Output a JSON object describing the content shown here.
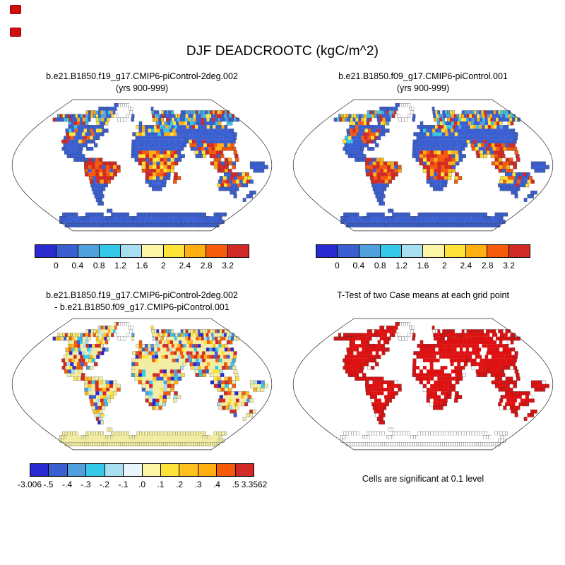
{
  "page": {
    "title": "DJF DEADCROOTC (kgC/m^2)",
    "background": "#ffffff"
  },
  "decorations": {
    "corner_mark_color": "#cc1111",
    "corner_mark_count": 2
  },
  "panels": [
    {
      "id": "case1",
      "title_line1": "b.e21.B1850.f19_g17.CMIP6-piControl-2deg.002",
      "title_line2": "(yrs 900-999)"
    },
    {
      "id": "case2",
      "title_line1": "b.e21.B1850.f09_g17.CMIP6-piControl.001",
      "title_line2": "(yrs 900-999)"
    },
    {
      "id": "difference",
      "title_line1": "b.e21.B1850.f19_g17.CMIP6-piControl-2deg.002",
      "title_line2": "- b.e21.B1850.f09_g17.CMIP6-piControl.001"
    },
    {
      "id": "ttest",
      "title_line1": "T-Test of two Case means at each grid point",
      "title_line2": "",
      "caption": "Cells are significant at 0.1 level"
    }
  ],
  "chart_data": [
    {
      "type": "heatmap",
      "panel": "top-left",
      "variable": "DEADCROOTC",
      "season": "DJF",
      "units": "kgC/m^2",
      "title": "b.e21.B1850.f19_g17.CMIP6-piControl-2deg.002",
      "subtitle": "(yrs 900-999)",
      "projection": "robinson",
      "colorbar": {
        "colors": [
          "#2a2ad0",
          "#3a5fd0",
          "#4fa0dc",
          "#35c8e8",
          "#a8dff0",
          "#fdf5a6",
          "#ffe339",
          "#ffaf12",
          "#f55b0b",
          "#d22b27"
        ],
        "tick_labels": [
          "0",
          "0.4",
          "0.8",
          "1.2",
          "1.6",
          "2",
          "2.4",
          "2.8",
          "3.2"
        ],
        "tick_positions_pct": [
          10,
          20,
          30,
          40,
          50,
          60,
          70,
          80,
          90
        ]
      }
    },
    {
      "type": "heatmap",
      "panel": "top-right",
      "variable": "DEADCROOTC",
      "season": "DJF",
      "units": "kgC/m^2",
      "title": "b.e21.B1850.f09_g17.CMIP6-piControl.001",
      "subtitle": "(yrs 900-999)",
      "projection": "robinson",
      "colorbar": {
        "colors": [
          "#2a2ad0",
          "#3a5fd0",
          "#4fa0dc",
          "#35c8e8",
          "#a8dff0",
          "#fdf5a6",
          "#ffe339",
          "#ffaf12",
          "#f55b0b",
          "#d22b27"
        ],
        "tick_labels": [
          "0",
          "0.4",
          "0.8",
          "1.2",
          "1.6",
          "2",
          "2.4",
          "2.8",
          "3.2"
        ],
        "tick_positions_pct": [
          10,
          20,
          30,
          40,
          50,
          60,
          70,
          80,
          90
        ]
      }
    },
    {
      "type": "heatmap",
      "panel": "bottom-left",
      "title": "b.e21.B1850.f19_g17.CMIP6-piControl-2deg.002 - b.e21.B1850.f09_g17.CMIP6-piControl.001",
      "projection": "robinson",
      "min": -3.006,
      "max": 3.3562,
      "colorbar": {
        "colors": [
          "#2a2ad0",
          "#3a5fd0",
          "#4fa0dc",
          "#35c8e8",
          "#a8dff0",
          "#e8f6fb",
          "#fdf5a6",
          "#ffe339",
          "#ffc020",
          "#ffaf12",
          "#f55b0b",
          "#d22b27"
        ],
        "tick_labels": [
          "-3.006",
          "-.5",
          "-.4",
          "-.3",
          "-.2",
          "-.1",
          ".0",
          ".1",
          ".2",
          ".3",
          ".4",
          ".5",
          "3.3562"
        ],
        "tick_positions_pct": [
          0,
          8.33,
          16.67,
          25,
          33.33,
          41.67,
          50,
          58.33,
          66.67,
          75,
          83.33,
          91.67,
          100
        ]
      }
    },
    {
      "type": "map",
      "panel": "bottom-right",
      "title": "T-Test of two Case means at each grid point",
      "note": "Cells are significant at 0.1 level",
      "significant_color": "#dd1111",
      "projection": "robinson"
    }
  ],
  "map": {
    "mask": [
      "........................................................................",
      ".......................LLGGGGG..........................................",
      ".................LLLLLLLLGGGGGGG........L...............................",
      ".............LLLLLLLLLLLLGGGGGGG........LLL.LLLLL...LLLLLLLLLLLLLLLLLLLL",
      "...LLLLLLLLLLLLLLLLLLLLLL.GGGGG.L.......LLLLLLLLLLLLLLLLLLLLLLLLLLLLLLLL",
      "...LLLLLLLLLLLLLL..LLLLL...GGG..L.......LLLL.LLLLLLLLLLLLLLLLLLLLLLLLLLL",
      "..........LLLLLLL...LLLL...........L.....LLLLLLLLLLLLLLLLLLLLLLL..LL....",
      "...........LLLLLLLLLLLL...........LLLLLLLLLLLLLLLLLLLLLLLLLLLLLLL.......",
      "...........LLLLLLLLLLLLLL..........LLLLLLLLLLLLLLLLLLLLLLLLLLLLLLL.....",
      "............LLLLLLLLLLLL.........LLLLLLLLLLLLLLLLLLLLLLLLLLLLLLLLL......",
      "............LLLLLLLLLLL...........LLLLLLLLLLLLLLLLLLLLLLLLLLLLLLL.......",
      "............LLLLLLLLLL...........LLLLLLLLLLLLLLLLLLLLLLLLLLLLLLL........",
      ".............LLLLLLL..L..........LLLLLLLLLLLLLLLL.LLLLLLLLLLLLL.........",
      ".............LLLLLL.LL...........LLLLLLLLLLLLLLL..LLLLLLLLLLLLL.........",
      "..............LLLLL..............LLLLLLLLLLLLLL....LLLLLLLL...L.........",
      "...............LLLLL.............LLLLLLLLLLLLLLL...LLL.LLLL...L.........",
      ".................LLLLLLLL.........LLLLLLLLLLLLL.........LL.LL.L.........",
      "....................LLLLLLLLL......LLLLLLLLLLL.........LLLLLLL....LLLL..",
      "....................LLLLLLLLLL......LLLLLLLLL...........LLLL.L....LLLLL.",
      "....................LLLLLLLLLL......LLLLLLLLL............LLLL......LLL..",
      "....................LLLLLLLLL........LLLLLLL.L.............LLLLLLL......",
      ".....................LLLLLLL.........LLLLLLL.LL...........LLLLLLLLL.....",
      ".....................LLLLLL..........LLLLLL..L............LLLLLLLLLL....",
      ".....................LLLLL............LLLLL...............LLLLLLLLL.....",
      ".....................LLLL..............LLL.................LLLLLL.......",
      ".....................LLL.......................................LL....LL.",
      ".....................LLL.........................................L...LL.",
      ".....................LL..............................................L..",
      ".....................LL.................................................",
      "........................................................................",
      ".......................AA...............................................",
      ".....AAAAAA...AAAAAAA...AAAAAAA...AAAAAAAAAAAAAAAAAAAAAAAAAAA...AAAAA...",
      "..AAAAAAAAAAAAAAAAAAAAAAAAAAAAAAAAAAAAAAAAAAAAAAAAAAAAAAAAAAAAAAAAAAA.",
      "AAAAAAAAAAAAAAAAAAAAAAAAAAAAAAAAAAAAAAAAAAAAAAAAAAAAAAAAAAAAAAAAAAAAAAAA",
      "AAAAAAAAAAAAAAAAAAAAAAAAAAAAAAAAAAAAAAAAAAAAAAAAAAAAAAAAAAAAAAAAAAAAAAAA",
      "........................................................................"
    ]
  },
  "render": {
    "panels": [
      {
        "svg": "map0",
        "seed": 1,
        "base": "#3a5fd0",
        "greenland": "#ffffff",
        "antarctica": "#3a5fd0",
        "coast": true,
        "coastColor": "#3b3b46",
        "rules": [
          {
            "r": [
              16,
              22
            ],
            "c": [
              20,
              29
            ],
            "p": 0.9,
            "colors": [
              "#d22b27",
              "#d22b27",
              "#f55b0b",
              "#ffaf12"
            ],
            "s": 11
          },
          {
            "r": [
              14,
              21
            ],
            "c": [
              35,
              45
            ],
            "p": 0.85,
            "colors": [
              "#d22b27",
              "#f55b0b",
              "#d22b27",
              "#ffe339",
              "#ffaf12"
            ],
            "s": 12
          },
          {
            "r": [
              11,
              15
            ],
            "c": [
              49,
              54
            ],
            "p": 0.45,
            "colors": [
              "#f55b0b",
              "#d22b27",
              "#ffe339"
            ],
            "s": 13
          },
          {
            "r": [
              12,
              19
            ],
            "c": [
              54,
              62
            ],
            "p": 0.85,
            "colors": [
              "#d22b27",
              "#f55b0b",
              "#d22b27",
              "#ffaf12"
            ],
            "s": 14
          },
          {
            "r": [
              20,
              22
            ],
            "c": [
              44,
              46
            ],
            "p": 0.9,
            "colors": [
              "#d22b27",
              "#f55b0b"
            ],
            "s": 15
          },
          {
            "r": [
              8,
              11
            ],
            "c": [
              17,
              22
            ],
            "p": 0.55,
            "colors": [
              "#d22b27",
              "#f55b0b",
              "#ffe339"
            ],
            "s": 16
          },
          {
            "r": [
              6,
              11
            ],
            "c": [
              10,
              14
            ],
            "p": 0.5,
            "colors": [
              "#f55b0b",
              "#ffe339",
              "#35c8e8",
              "#d22b27"
            ],
            "s": 17
          },
          {
            "r": [
              3,
              6
            ],
            "c": [
              3,
              24
            ],
            "p": 0.6,
            "colors": [
              "#35c8e8",
              "#ffe339",
              "#ffaf12",
              "#4fa0dc",
              "#d22b27"
            ],
            "s": 18
          },
          {
            "r": [
              3,
              7
            ],
            "c": [
              40,
              71
            ],
            "p": 0.6,
            "colors": [
              "#35c8e8",
              "#ffe339",
              "#ffaf12",
              "#d22b27",
              "#4fa0dc"
            ],
            "s": 19
          },
          {
            "r": [
              7,
              9
            ],
            "c": [
              34,
              46
            ],
            "p": 0.45,
            "colors": [
              "#ffe339",
              "#35c8e8",
              "#ffaf12"
            ],
            "s": 20
          },
          {
            "r": [
              20,
              23
            ],
            "c": [
              58,
              67
            ],
            "p": 0.5,
            "colors": [
              "#f55b0b",
              "#d22b27",
              "#ffe339"
            ],
            "s": 21
          }
        ]
      },
      {
        "svg": "map1",
        "seed": 2,
        "base": "#3a5fd0",
        "greenland": "#ffffff",
        "antarctica": "#3a5fd0",
        "coast": true,
        "coastColor": "#3b3b46",
        "rules": [
          {
            "r": [
              16,
              22
            ],
            "c": [
              20,
              29
            ],
            "p": 0.9,
            "colors": [
              "#d22b27",
              "#d22b27",
              "#f55b0b",
              "#ffaf12"
            ],
            "s": 11
          },
          {
            "r": [
              14,
              21
            ],
            "c": [
              35,
              45
            ],
            "p": 0.85,
            "colors": [
              "#d22b27",
              "#f55b0b",
              "#d22b27",
              "#ffe339",
              "#ffaf12"
            ],
            "s": 12
          },
          {
            "r": [
              11,
              15
            ],
            "c": [
              49,
              54
            ],
            "p": 0.45,
            "colors": [
              "#f55b0b",
              "#d22b27",
              "#ffe339"
            ],
            "s": 13
          },
          {
            "r": [
              12,
              19
            ],
            "c": [
              54,
              62
            ],
            "p": 0.85,
            "colors": [
              "#d22b27",
              "#f55b0b",
              "#d22b27",
              "#ffaf12"
            ],
            "s": 14
          },
          {
            "r": [
              20,
              22
            ],
            "c": [
              44,
              46
            ],
            "p": 0.9,
            "colors": [
              "#d22b27",
              "#f55b0b"
            ],
            "s": 15
          },
          {
            "r": [
              8,
              11
            ],
            "c": [
              17,
              22
            ],
            "p": 0.55,
            "colors": [
              "#d22b27",
              "#f55b0b",
              "#ffe339"
            ],
            "s": 16
          },
          {
            "r": [
              6,
              11
            ],
            "c": [
              10,
              14
            ],
            "p": 0.5,
            "colors": [
              "#f55b0b",
              "#ffe339",
              "#35c8e8",
              "#d22b27"
            ],
            "s": 17
          },
          {
            "r": [
              3,
              6
            ],
            "c": [
              3,
              24
            ],
            "p": 0.6,
            "colors": [
              "#35c8e8",
              "#ffe339",
              "#ffaf12",
              "#4fa0dc",
              "#d22b27"
            ],
            "s": 18
          },
          {
            "r": [
              3,
              7
            ],
            "c": [
              40,
              71
            ],
            "p": 0.6,
            "colors": [
              "#35c8e8",
              "#ffe339",
              "#ffaf12",
              "#d22b27",
              "#4fa0dc"
            ],
            "s": 19
          },
          {
            "r": [
              7,
              9
            ],
            "c": [
              34,
              46
            ],
            "p": 0.45,
            "colors": [
              "#ffe339",
              "#35c8e8",
              "#ffaf12"
            ],
            "s": 20
          },
          {
            "r": [
              20,
              23
            ],
            "c": [
              58,
              67
            ],
            "p": 0.5,
            "colors": [
              "#f55b0b",
              "#d22b27",
              "#ffe339"
            ],
            "s": 21
          }
        ]
      },
      {
        "svg": "map2",
        "seed": 3,
        "base": "#f2eda2",
        "greenland": "#ffffff",
        "antarctica": "#f2eda2",
        "coast": true,
        "coastColor": "#555555",
        "rules": [
          {
            "r": [
              11,
              13
            ],
            "c": [
              33,
              46
            ],
            "p": 0.22,
            "stop": true,
            "colors": [
              "#f55b0b",
              "#35c8e8",
              "#ffe339",
              "#3a5fd0"
            ],
            "s": 31
          },
          {
            "r": [
              0,
              29
            ],
            "c": [
              0,
              71
            ],
            "p": 0.62,
            "colors": [
              "#d22b27",
              "#f55b0b",
              "#ffaf12",
              "#ffe339",
              "#2a2ad0",
              "#3a5fd0",
              "#35c8e8",
              "#a8dff0",
              "#4fa0dc",
              "#d22b27",
              "#f55b0b",
              "#ffc020"
            ],
            "s": 32
          }
        ]
      },
      {
        "svg": "map3",
        "seed": 4,
        "base": "#dd1111",
        "greenland": "#ffffff",
        "antarctica": "#ffffff",
        "coast": true,
        "coastColor": "#333333",
        "rules": [
          {
            "r": [
              11,
              13
            ],
            "c": [
              34,
              44
            ],
            "p": 0.5,
            "stop": true,
            "colors": [
              "#ffffff"
            ],
            "s": 41
          },
          {
            "r": [
              8,
              10
            ],
            "c": [
              47,
              56
            ],
            "p": 0.3,
            "colors": [
              "#ffffff"
            ],
            "s": 42
          },
          {
            "r": [
              21,
              24
            ],
            "c": [
              59,
              65
            ],
            "p": 0.3,
            "colors": [
              "#ffffff"
            ],
            "s": 43
          },
          {
            "r": [
              0,
              35
            ],
            "c": [
              0,
              71
            ],
            "p": 0.1,
            "colors": [
              "#ffffff"
            ],
            "s": 44
          }
        ]
      }
    ]
  }
}
